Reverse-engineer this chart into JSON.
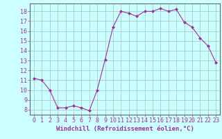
{
  "x": [
    0,
    1,
    2,
    3,
    4,
    5,
    6,
    7,
    8,
    9,
    10,
    11,
    12,
    13,
    14,
    15,
    16,
    17,
    18,
    19,
    20,
    21,
    22,
    23
  ],
  "y": [
    11.2,
    11.0,
    10.0,
    8.2,
    8.2,
    8.4,
    8.2,
    7.9,
    10.0,
    13.1,
    16.4,
    18.0,
    17.8,
    17.5,
    18.0,
    18.0,
    18.3,
    18.0,
    18.2,
    16.9,
    16.4,
    15.3,
    14.5,
    12.8
  ],
  "line_color": "#993399",
  "marker": "D",
  "marker_size": 2.0,
  "bg_color": "#ccffff",
  "grid_color": "#aacccc",
  "xlabel": "Windchill (Refroidissement éolien,°C)",
  "xlabel_color": "#993399",
  "tick_color": "#993399",
  "ylabel_ticks": [
    8,
    9,
    10,
    11,
    12,
    13,
    14,
    15,
    16,
    17,
    18
  ],
  "ylim": [
    7.5,
    18.8
  ],
  "xlim": [
    -0.5,
    23.5
  ],
  "xticks": [
    0,
    1,
    2,
    3,
    4,
    5,
    6,
    7,
    8,
    9,
    10,
    11,
    12,
    13,
    14,
    15,
    16,
    17,
    18,
    19,
    20,
    21,
    22,
    23
  ],
  "font_family": "monospace",
  "tick_fontsize": 6.0,
  "xlabel_fontsize": 6.5
}
